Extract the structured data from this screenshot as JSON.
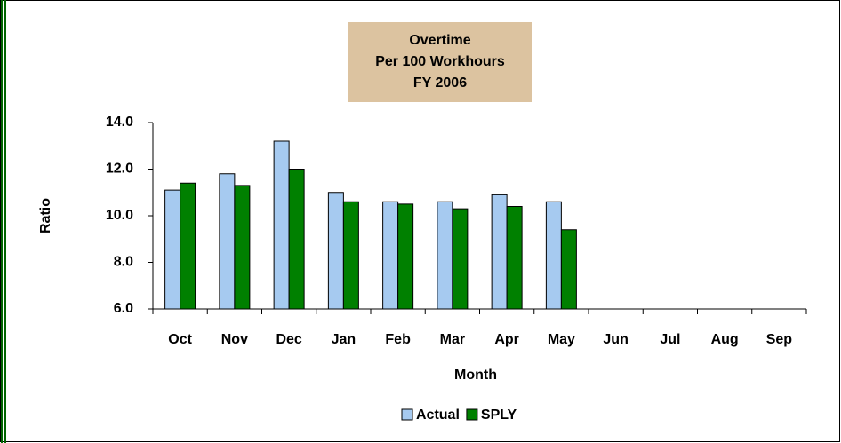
{
  "chart_data": {
    "type": "bar",
    "title": [
      "Overtime",
      "Per 100 Workhours",
      "FY 2006"
    ],
    "x_label": "Month",
    "y_label": "Ratio",
    "categories": [
      "Oct",
      "Nov",
      "Dec",
      "Jan",
      "Feb",
      "Mar",
      "Apr",
      "May",
      "Jun",
      "Jul",
      "Aug",
      "Sep"
    ],
    "series": [
      {
        "name": "Actual",
        "color": "#a6caf0",
        "values": [
          11.1,
          11.8,
          13.2,
          11.0,
          10.6,
          10.6,
          10.9,
          10.6,
          null,
          null,
          null,
          null
        ]
      },
      {
        "name": "SPLY",
        "color": "#008000",
        "values": [
          11.4,
          11.3,
          12.0,
          10.6,
          10.5,
          10.3,
          10.4,
          9.4,
          null,
          null,
          null,
          null
        ]
      }
    ],
    "ylim": [
      6,
      14
    ],
    "yticks": [
      {
        "value": 6,
        "label": "6.0"
      },
      {
        "value": 8,
        "label": "8.0"
      },
      {
        "value": 10,
        "label": "10.0"
      },
      {
        "value": 12,
        "label": "12.0"
      },
      {
        "value": 14,
        "label": "14.0"
      }
    ],
    "grid": false,
    "legend": "bottom"
  }
}
